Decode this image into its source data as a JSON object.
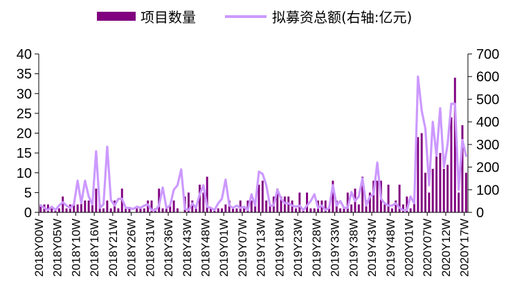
{
  "chart_data": {
    "type": "bar+line",
    "legend": {
      "placement": "top",
      "items": [
        {
          "label": "项目数量",
          "kind": "bar",
          "color": "#800080"
        },
        {
          "label": "拟募资总额(右轴:亿元)",
          "kind": "line",
          "color": "#CC99FF"
        }
      ]
    },
    "y_left": {
      "ylim": [
        0,
        40
      ],
      "ticks": [
        "0",
        "5",
        "10",
        "15",
        "20",
        "25",
        "30",
        "35",
        "40"
      ]
    },
    "y_right": {
      "ylim": [
        0,
        700
      ],
      "ticks": [
        "0",
        "100",
        "200",
        "300",
        "400",
        "500",
        "600",
        "700"
      ]
    },
    "x_tick_labels": [
      {
        "week": 0,
        "label": "2018Y00W"
      },
      {
        "week": 5,
        "label": "2018Y05W"
      },
      {
        "week": 10,
        "label": "2018Y10W"
      },
      {
        "week": 15,
        "label": "2018Y16W"
      },
      {
        "week": 20,
        "label": "2018Y21W"
      },
      {
        "week": 25,
        "label": "2018Y26W"
      },
      {
        "week": 30,
        "label": "2018Y31W"
      },
      {
        "week": 35,
        "label": "2018Y36W"
      },
      {
        "week": 40,
        "label": "2018Y43W"
      },
      {
        "week": 45,
        "label": "2018Y48W"
      },
      {
        "week": 50,
        "label": "2019Y01W"
      },
      {
        "week": 55,
        "label": "2019Y07W"
      },
      {
        "week": 60,
        "label": "2019Y13W"
      },
      {
        "week": 65,
        "label": "2019Y18W"
      },
      {
        "week": 70,
        "label": "2019Y23W"
      },
      {
        "week": 75,
        "label": "2019Y28W"
      },
      {
        "week": 80,
        "label": "2019Y33W"
      },
      {
        "week": 85,
        "label": "2019Y38W"
      },
      {
        "week": 90,
        "label": "2019Y43W"
      },
      {
        "week": 95,
        "label": "2019Y48W"
      },
      {
        "week": 100,
        "label": "2020Y01W"
      },
      {
        "week": 105,
        "label": "2020Y07W"
      },
      {
        "week": 110,
        "label": "2020Y12W"
      },
      {
        "week": 115,
        "label": "2020Y17W"
      }
    ],
    "series": [
      {
        "name": "项目数量",
        "axis": "left",
        "kind": "bar",
        "color": "#800080",
        "values": [
          2,
          2,
          2,
          1,
          1,
          1,
          4,
          1,
          2,
          2,
          2,
          4,
          3,
          3,
          2,
          6,
          2,
          1,
          3,
          1,
          3,
          1,
          6,
          1,
          1,
          0,
          1,
          1,
          1,
          3,
          3,
          1,
          6,
          1,
          1,
          2,
          3,
          1,
          0,
          4,
          5,
          3,
          1,
          7,
          5,
          9,
          1,
          1,
          1,
          1,
          2,
          3,
          1,
          1,
          3,
          1,
          3,
          3,
          2,
          7,
          8,
          3,
          2,
          4,
          6,
          4,
          4,
          4,
          3,
          1,
          5,
          1,
          5,
          1,
          1,
          3,
          3,
          3,
          1,
          8,
          3,
          1,
          1,
          5,
          2,
          6,
          2,
          9,
          3,
          5,
          8,
          8,
          8,
          2,
          7,
          1,
          3,
          7,
          2,
          4,
          1,
          3,
          19,
          20,
          10,
          5,
          11,
          16,
          15,
          11,
          12,
          24,
          34,
          5,
          22,
          10
        ]
      },
      {
        "name": "拟募资总额(右轴:亿元)",
        "axis": "right",
        "kind": "line",
        "color": "#CC99FF",
        "values": [
          30,
          20,
          10,
          25,
          10,
          30,
          45,
          30,
          20,
          35,
          140,
          40,
          140,
          70,
          35,
          270,
          20,
          35,
          290,
          55,
          30,
          60,
          60,
          20,
          20,
          15,
          25,
          20,
          30,
          35,
          10,
          10,
          30,
          110,
          20,
          30,
          100,
          120,
          190,
          15,
          10,
          40,
          20,
          80,
          120,
          25,
          20,
          10,
          40,
          60,
          145,
          30,
          20,
          30,
          20,
          25,
          10,
          80,
          30,
          180,
          170,
          120,
          30,
          30,
          100,
          60,
          40,
          40,
          30,
          25,
          30,
          10,
          30,
          50,
          80,
          20,
          30,
          10,
          20,
          120,
          30,
          50,
          20,
          20,
          90,
          50,
          70,
          150,
          30,
          70,
          80,
          220,
          60,
          40,
          30,
          30,
          40,
          20,
          10,
          10,
          70,
          40,
          600,
          450,
          370,
          120,
          400,
          250,
          460,
          200,
          300,
          480,
          480,
          100,
          320,
          250
        ]
      }
    ]
  }
}
